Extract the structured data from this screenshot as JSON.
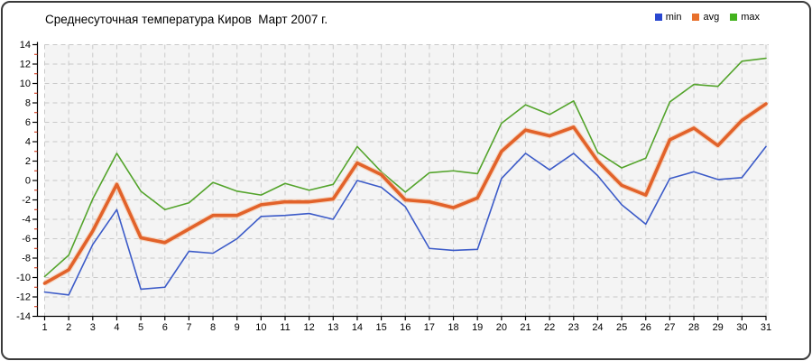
{
  "title": "Среднесуточная температура Киров  Март 2007 г.",
  "legend": {
    "items": [
      {
        "label": "min",
        "swatch_color": "#2947d0"
      },
      {
        "label": "avg",
        "swatch_color": "#e8702c"
      },
      {
        "label": "max",
        "swatch_color": "#43b21e"
      }
    ]
  },
  "chart_data": {
    "type": "line",
    "title": "Среднесуточная температура Киров  Март 2007 г.",
    "xlabel": "",
    "ylabel": "",
    "categories": [
      "1",
      "2",
      "3",
      "4",
      "5",
      "6",
      "7",
      "8",
      "9",
      "10",
      "11",
      "12",
      "13",
      "14",
      "15",
      "16",
      "17",
      "18",
      "19",
      "20",
      "21",
      "22",
      "23",
      "24",
      "25",
      "26",
      "27",
      "28",
      "29",
      "30",
      "31"
    ],
    "series": [
      {
        "name": "min",
        "color": "#3c5bc8",
        "values": [
          -11.5,
          -11.8,
          -6.6,
          -3.0,
          -11.2,
          -11.0,
          -7.3,
          -7.5,
          -6.0,
          -3.7,
          -3.6,
          -3.4,
          -4.0,
          0.0,
          -0.7,
          -2.7,
          -7.0,
          -7.2,
          -7.1,
          0.2,
          2.8,
          1.1,
          2.8,
          0.5,
          -2.5,
          -4.5,
          0.2,
          0.9,
          0.1,
          0.3,
          3.5
        ]
      },
      {
        "name": "avg",
        "color": "#e2622a",
        "values": [
          -10.6,
          -9.2,
          -5.2,
          -0.4,
          -5.9,
          -6.4,
          -5.0,
          -3.6,
          -3.6,
          -2.5,
          -2.2,
          -2.2,
          -1.9,
          1.8,
          0.6,
          -2.0,
          -2.2,
          -2.8,
          -1.8,
          3.0,
          5.2,
          4.6,
          5.5,
          2.0,
          -0.5,
          -1.5,
          4.2,
          5.4,
          3.6,
          6.2,
          7.9
        ]
      },
      {
        "name": "max",
        "color": "#54a42c",
        "values": [
          -9.9,
          -7.7,
          -1.9,
          2.8,
          -1.1,
          -3.0,
          -2.3,
          -0.2,
          -1.1,
          -1.5,
          -0.3,
          -1.0,
          -0.4,
          3.5,
          0.9,
          -1.2,
          0.8,
          1.0,
          0.7,
          5.9,
          7.8,
          6.8,
          8.2,
          2.9,
          1.3,
          2.3,
          8.1,
          9.9,
          9.7,
          12.3,
          12.6
        ]
      }
    ],
    "ylim": [
      -14,
      14
    ],
    "ytick_step": 2,
    "yticks": [
      -14,
      -12,
      -10,
      -8,
      -6,
      -4,
      -2,
      0,
      2,
      4,
      6,
      8,
      10,
      12,
      14
    ],
    "grid": "dashed",
    "plot_background": "#f4f4f4",
    "gridline_color": "#c9c9c9",
    "minor_tick_color": "#cc2200",
    "legend_position": "top-right",
    "draw_order": [
      "max",
      "min",
      "avg"
    ],
    "avg_line_width": 3.6,
    "thin_line_width": 1.6
  }
}
